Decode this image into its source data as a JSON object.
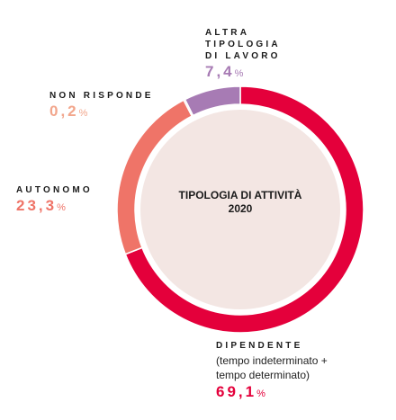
{
  "chart_data": {
    "type": "donut",
    "title": "TIPOLOGIA DI ATTIVITÀ 2020",
    "categories": [
      "DIPENDENTE",
      "AUTONOMO",
      "NON RISPONDE",
      "ALTRA TIPOLOGIA DI LAVORO"
    ],
    "values": [
      69.1,
      23.3,
      0.2,
      7.4
    ],
    "value_labels": [
      "69,1",
      "23,3",
      "0,2",
      "7,4"
    ],
    "unit": "%",
    "colors": [
      "#e4003b",
      "#ef7468",
      "#f2a68c",
      "#a77bb4"
    ],
    "annotations": [
      "(tempo indeterminato + tempo determinato)"
    ]
  }
}
